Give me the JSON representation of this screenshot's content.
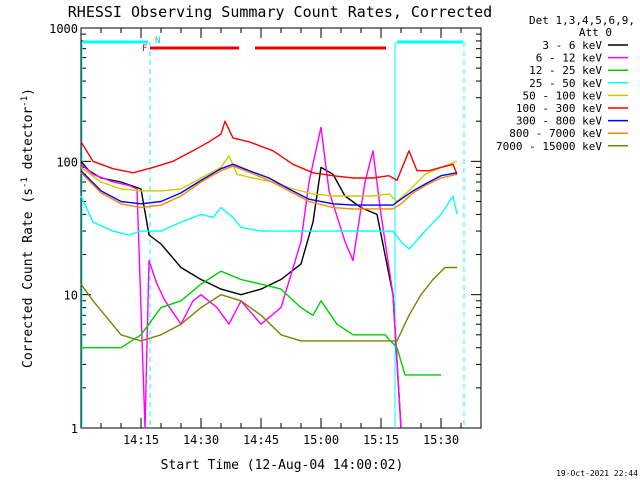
{
  "chart_data": {
    "type": "line",
    "title": "RHESSI Observing Summary Count Rates, Corrected",
    "xlabel": "Start Time (12-Aug-04 14:00:02)",
    "ylabel_main": "Corrected Count Rate (s",
    "ylabel_sup1": "-1",
    "ylabel_mid": " detector",
    "ylabel_sup2": "-1",
    "ylabel_end": ")",
    "yscale": "log",
    "ylim": [
      1,
      1000
    ],
    "xlim_min": [
      0,
      100
    ],
    "y_ticks": [
      {
        "v": 1,
        "label": "1"
      },
      {
        "v": 10,
        "label": "10"
      },
      {
        "v": 100,
        "label": "100"
      },
      {
        "v": 1000,
        "label": "1000"
      }
    ],
    "x_ticks": [
      {
        "v": 15,
        "label": "14:15"
      },
      {
        "v": 30,
        "label": "14:30"
      },
      {
        "v": 45,
        "label": "14:45"
      },
      {
        "v": 60,
        "label": "15:00"
      },
      {
        "v": 75,
        "label": "15:15"
      },
      {
        "v": 90,
        "label": "15:30"
      }
    ],
    "legend_header": [
      "Det 1,3,4,5,6,9,",
      "Att 0"
    ],
    "flags": {
      "f_label": "F",
      "n_label": "N"
    },
    "footer_date": "19-Oct-2021 22:44",
    "series": [
      {
        "name": "3 - 6 keV",
        "color": "#000000",
        "points": [
          [
            0,
            100
          ],
          [
            2,
            85
          ],
          [
            5,
            75
          ],
          [
            10,
            70
          ],
          [
            15,
            62
          ],
          [
            17,
            28
          ],
          [
            20,
            24
          ],
          [
            25,
            16
          ],
          [
            30,
            13
          ],
          [
            35,
            11
          ],
          [
            40,
            10
          ],
          [
            45,
            11
          ],
          [
            50,
            13
          ],
          [
            55,
            17
          ],
          [
            58,
            35
          ],
          [
            60,
            90
          ],
          [
            63,
            80
          ],
          [
            66,
            55
          ],
          [
            70,
            45
          ],
          [
            74,
            40
          ],
          [
            78,
            10
          ],
          [
            80,
            1
          ]
        ]
      },
      {
        "name": "6 - 12 keV",
        "color": "#ff00ff",
        "points": [
          [
            0,
            95
          ],
          [
            3,
            80
          ],
          [
            8,
            70
          ],
          [
            12,
            66
          ],
          [
            14,
            62
          ],
          [
            16,
            1
          ],
          [
            17,
            18
          ],
          [
            19,
            12
          ],
          [
            21,
            9
          ],
          [
            25,
            6
          ],
          [
            28,
            9
          ],
          [
            30,
            10
          ],
          [
            34,
            8
          ],
          [
            37,
            6
          ],
          [
            40,
            9
          ],
          [
            45,
            6
          ],
          [
            50,
            8
          ],
          [
            55,
            25
          ],
          [
            57,
            70
          ],
          [
            60,
            180
          ],
          [
            62,
            60
          ],
          [
            66,
            25
          ],
          [
            68,
            18
          ],
          [
            71,
            70
          ],
          [
            73,
            120
          ],
          [
            75,
            40
          ],
          [
            78,
            10
          ],
          [
            80,
            1
          ]
        ]
      },
      {
        "name": "12 - 25 keV",
        "color": "#00cc00",
        "points": [
          [
            0,
            4
          ],
          [
            5,
            4
          ],
          [
            10,
            4
          ],
          [
            15,
            5
          ],
          [
            20,
            8
          ],
          [
            25,
            9
          ],
          [
            30,
            12
          ],
          [
            35,
            15
          ],
          [
            40,
            13
          ],
          [
            45,
            12
          ],
          [
            50,
            11
          ],
          [
            55,
            8
          ],
          [
            58,
            7
          ],
          [
            60,
            9
          ],
          [
            64,
            6
          ],
          [
            68,
            5
          ],
          [
            72,
            5
          ],
          [
            76,
            5
          ],
          [
            79,
            4
          ],
          [
            81,
            2.5
          ],
          [
            90,
            2.5
          ]
        ]
      },
      {
        "name": "25 - 50 keV",
        "color": "#00ffff",
        "points": [
          [
            0,
            55
          ],
          [
            3,
            35
          ],
          [
            8,
            30
          ],
          [
            12,
            28
          ],
          [
            15,
            30
          ],
          [
            20,
            30
          ],
          [
            25,
            35
          ],
          [
            30,
            40
          ],
          [
            33,
            38
          ],
          [
            35,
            45
          ],
          [
            38,
            38
          ],
          [
            40,
            32
          ],
          [
            45,
            30
          ],
          [
            50,
            30
          ],
          [
            55,
            30
          ],
          [
            60,
            30
          ],
          [
            65,
            30
          ],
          [
            70,
            30
          ],
          [
            75,
            30
          ],
          [
            78,
            30
          ],
          [
            80,
            25
          ],
          [
            82,
            22
          ],
          [
            86,
            30
          ],
          [
            90,
            40
          ],
          [
            93,
            55
          ],
          [
            94,
            40
          ]
        ]
      },
      {
        "name": "50 - 100 keV",
        "color": "#cccc00",
        "points": [
          [
            0,
            90
          ],
          [
            5,
            70
          ],
          [
            10,
            62
          ],
          [
            15,
            60
          ],
          [
            20,
            60
          ],
          [
            25,
            62
          ],
          [
            30,
            75
          ],
          [
            35,
            90
          ],
          [
            37,
            110
          ],
          [
            39,
            80
          ],
          [
            43,
            75
          ],
          [
            48,
            70
          ],
          [
            53,
            62
          ],
          [
            58,
            57
          ],
          [
            63,
            55
          ],
          [
            68,
            55
          ],
          [
            73,
            55
          ],
          [
            77,
            57
          ],
          [
            79,
            50
          ],
          [
            82,
            60
          ],
          [
            86,
            80
          ],
          [
            90,
            90
          ],
          [
            94,
            100
          ]
        ]
      },
      {
        "name": "100 - 300 keV",
        "color": "#ff0000",
        "points": [
          [
            0,
            140
          ],
          [
            3,
            100
          ],
          [
            8,
            88
          ],
          [
            13,
            82
          ],
          [
            18,
            90
          ],
          [
            23,
            100
          ],
          [
            28,
            120
          ],
          [
            32,
            140
          ],
          [
            35,
            160
          ],
          [
            36,
            200
          ],
          [
            38,
            150
          ],
          [
            42,
            140
          ],
          [
            48,
            120
          ],
          [
            53,
            95
          ],
          [
            58,
            82
          ],
          [
            63,
            78
          ],
          [
            68,
            75
          ],
          [
            73,
            75
          ],
          [
            77,
            78
          ],
          [
            79,
            72
          ],
          [
            82,
            120
          ],
          [
            84,
            85
          ],
          [
            87,
            85
          ],
          [
            90,
            90
          ],
          [
            93,
            95
          ],
          [
            94,
            80
          ]
        ]
      },
      {
        "name": "300 - 800 keV",
        "color": "#0000ff",
        "points": [
          [
            0,
            85
          ],
          [
            5,
            60
          ],
          [
            10,
            50
          ],
          [
            15,
            48
          ],
          [
            20,
            50
          ],
          [
            25,
            58
          ],
          [
            30,
            72
          ],
          [
            35,
            88
          ],
          [
            38,
            95
          ],
          [
            42,
            85
          ],
          [
            47,
            75
          ],
          [
            52,
            62
          ],
          [
            57,
            52
          ],
          [
            63,
            48
          ],
          [
            68,
            47
          ],
          [
            73,
            47
          ],
          [
            78,
            47
          ],
          [
            80,
            52
          ],
          [
            83,
            60
          ],
          [
            87,
            70
          ],
          [
            90,
            78
          ],
          [
            94,
            82
          ]
        ]
      },
      {
        "name": "800 - 7000 keV",
        "color": "#ff8800",
        "points": [
          [
            0,
            82
          ],
          [
            5,
            58
          ],
          [
            10,
            48
          ],
          [
            15,
            45
          ],
          [
            20,
            47
          ],
          [
            25,
            55
          ],
          [
            30,
            70
          ],
          [
            35,
            85
          ],
          [
            38,
            92
          ],
          [
            42,
            83
          ],
          [
            47,
            72
          ],
          [
            52,
            60
          ],
          [
            57,
            50
          ],
          [
            63,
            45
          ],
          [
            68,
            44
          ],
          [
            73,
            44
          ],
          [
            78,
            44
          ],
          [
            80,
            48
          ],
          [
            83,
            58
          ],
          [
            87,
            68
          ],
          [
            90,
            75
          ],
          [
            94,
            80
          ]
        ]
      },
      {
        "name": "7000 - 15000 keV",
        "color": "#808000",
        "points": [
          [
            0,
            12
          ],
          [
            3,
            9
          ],
          [
            6,
            7
          ],
          [
            10,
            5
          ],
          [
            15,
            4.5
          ],
          [
            20,
            5
          ],
          [
            25,
            6
          ],
          [
            30,
            8
          ],
          [
            35,
            10
          ],
          [
            40,
            9
          ],
          [
            45,
            7
          ],
          [
            50,
            5
          ],
          [
            55,
            4.5
          ],
          [
            60,
            4.5
          ],
          [
            65,
            4.5
          ],
          [
            70,
            4.5
          ],
          [
            75,
            4.5
          ],
          [
            79,
            4.5
          ],
          [
            82,
            7
          ],
          [
            85,
            10
          ],
          [
            88,
            13
          ],
          [
            91,
            16
          ],
          [
            94,
            16
          ]
        ]
      }
    ]
  }
}
